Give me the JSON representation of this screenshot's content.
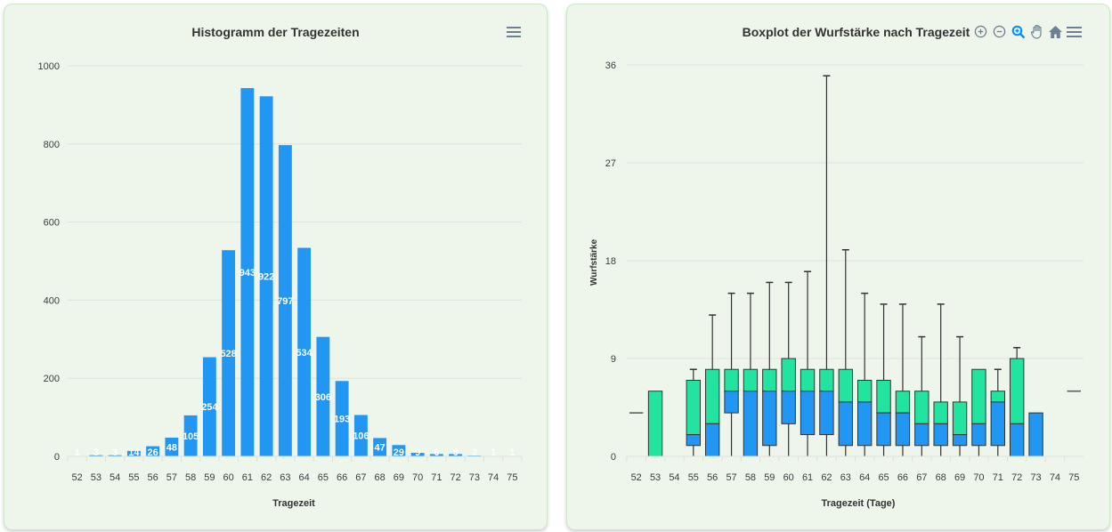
{
  "chart_data": [
    {
      "type": "bar",
      "title": "Histogramm der Tragezeiten",
      "xlabel": "Tragezeit",
      "ylabel": "",
      "ylim": [
        0,
        1000
      ],
      "yticks": [
        "0",
        "200",
        "400",
        "600",
        "800",
        "1000"
      ],
      "grid": true,
      "categories": [
        "52",
        "53",
        "54",
        "55",
        "56",
        "57",
        "58",
        "59",
        "60",
        "61",
        "62",
        "63",
        "64",
        "65",
        "66",
        "67",
        "68",
        "69",
        "70",
        "71",
        "72",
        "73",
        "74",
        "75"
      ],
      "values": [
        1,
        3,
        3,
        14,
        26,
        48,
        105,
        254,
        528,
        943,
        922,
        797,
        534,
        306,
        193,
        106,
        47,
        29,
        9,
        6,
        6,
        2,
        1,
        1
      ],
      "color": "#2196f3",
      "data_labels": true
    },
    {
      "type": "boxplot",
      "title": "Boxplot der Wurfstärke nach Tragezeit",
      "xlabel": "Tragezeit (Tage)",
      "ylabel": "Wurfstärke",
      "ylim": [
        0,
        36
      ],
      "yticks": [
        "0",
        "9",
        "18",
        "27",
        "36"
      ],
      "grid": true,
      "categories": [
        "52",
        "53",
        "54",
        "55",
        "56",
        "57",
        "58",
        "59",
        "60",
        "61",
        "62",
        "63",
        "64",
        "65",
        "66",
        "67",
        "68",
        "69",
        "70",
        "71",
        "72",
        "73",
        "74",
        "75"
      ],
      "lower_color": "#2196f3",
      "upper_color": "#23e3a0",
      "boxes": [
        {
          "x": "52",
          "min": 4,
          "q1": 4,
          "median": 4,
          "q3": 4,
          "max": 4
        },
        {
          "x": "53",
          "min": 0,
          "q1": 0,
          "median": 0,
          "q3": 6,
          "max": 6
        },
        {
          "x": "54"
        },
        {
          "x": "55",
          "min": 0,
          "q1": 1,
          "median": 2,
          "q3": 7,
          "max": 8
        },
        {
          "x": "56",
          "min": 0,
          "q1": 0,
          "median": 3,
          "q3": 8,
          "max": 13
        },
        {
          "x": "57",
          "min": 0,
          "q1": 4,
          "median": 6,
          "q3": 8,
          "max": 15
        },
        {
          "x": "58",
          "min": 0,
          "q1": 0,
          "median": 6,
          "q3": 8,
          "max": 15
        },
        {
          "x": "59",
          "min": 0,
          "q1": 1,
          "median": 6,
          "q3": 8,
          "max": 16
        },
        {
          "x": "60",
          "min": 0,
          "q1": 3,
          "median": 6,
          "q3": 9,
          "max": 16
        },
        {
          "x": "61",
          "min": 0,
          "q1": 2,
          "median": 6,
          "q3": 8,
          "max": 17
        },
        {
          "x": "62",
          "min": 0,
          "q1": 2,
          "median": 6,
          "q3": 8,
          "max": 35
        },
        {
          "x": "63",
          "min": 0,
          "q1": 1,
          "median": 5,
          "q3": 8,
          "max": 19
        },
        {
          "x": "64",
          "min": 0,
          "q1": 1,
          "median": 5,
          "q3": 7,
          "max": 15
        },
        {
          "x": "65",
          "min": 0,
          "q1": 1,
          "median": 4,
          "q3": 7,
          "max": 14
        },
        {
          "x": "66",
          "min": 0,
          "q1": 1,
          "median": 4,
          "q3": 6,
          "max": 14
        },
        {
          "x": "67",
          "min": 0,
          "q1": 1,
          "median": 3,
          "q3": 6,
          "max": 11
        },
        {
          "x": "68",
          "min": 0,
          "q1": 1,
          "median": 3,
          "q3": 5,
          "max": 14
        },
        {
          "x": "69",
          "min": 0,
          "q1": 1,
          "median": 2,
          "q3": 5,
          "max": 11
        },
        {
          "x": "70",
          "min": 0,
          "q1": 1,
          "median": 3,
          "q3": 8,
          "max": 8
        },
        {
          "x": "71",
          "min": 0,
          "q1": 1,
          "median": 5,
          "q3": 6,
          "max": 8
        },
        {
          "x": "72",
          "min": 0,
          "q1": 0,
          "median": 3,
          "q3": 9,
          "max": 10
        },
        {
          "x": "73",
          "min": 0,
          "q1": 0,
          "median": 4,
          "q3": 4,
          "max": 4
        },
        {
          "x": "74"
        },
        {
          "x": "75",
          "min": 6,
          "q1": 6,
          "median": 6,
          "q3": 6,
          "max": 6
        }
      ]
    }
  ],
  "toolbar": {
    "icons": [
      "zoom-in-icon",
      "zoom-out-icon",
      "selection-zoom-icon",
      "pan-hand-icon",
      "reset-home-icon",
      "menu-icon"
    ],
    "active_color": "#008ffb",
    "icon_color": "#6e8192"
  }
}
